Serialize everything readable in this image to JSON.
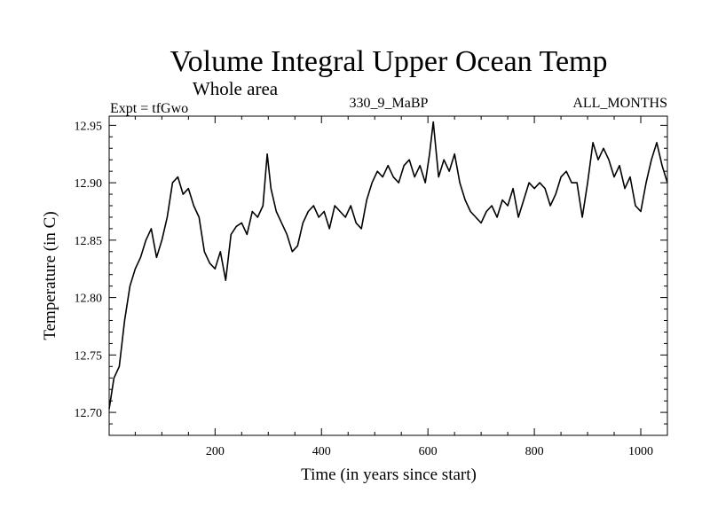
{
  "chart_data": {
    "type": "line",
    "title": "Volume Integral Upper Ocean Temp",
    "subtitle": "Whole area",
    "header_left": "Expt = tfGwo",
    "header_center": "330_9_MaBP",
    "header_right": "ALL_MONTHS",
    "xlabel": "Time (in years since start)",
    "ylabel": "Temperature (in C)",
    "xlim": [
      1,
      1050
    ],
    "ylim": [
      12.68,
      12.958
    ],
    "xticks": [
      200,
      400,
      600,
      800,
      1000
    ],
    "xtick_labels": [
      "200",
      "400",
      "600",
      "800",
      "1000"
    ],
    "yticks": [
      12.7,
      12.75,
      12.8,
      12.85,
      12.9,
      12.95
    ],
    "ytick_labels": [
      "12.70",
      "12.75",
      "12.80",
      "12.85",
      "12.90",
      "12.95"
    ],
    "grid": false,
    "series": [
      {
        "name": "Temperature",
        "color": "#000000",
        "x": [
          1,
          10,
          20,
          30,
          40,
          50,
          60,
          70,
          80,
          90,
          100,
          110,
          120,
          130,
          140,
          150,
          160,
          170,
          180,
          190,
          200,
          210,
          220,
          230,
          240,
          250,
          260,
          270,
          280,
          290,
          298,
          305,
          315,
          325,
          335,
          345,
          355,
          365,
          375,
          385,
          395,
          405,
          415,
          425,
          435,
          445,
          455,
          465,
          475,
          485,
          495,
          505,
          515,
          525,
          535,
          545,
          555,
          565,
          575,
          585,
          595,
          603,
          610,
          620,
          630,
          640,
          650,
          660,
          670,
          680,
          690,
          700,
          710,
          720,
          730,
          740,
          750,
          760,
          770,
          780,
          790,
          800,
          810,
          820,
          830,
          840,
          850,
          860,
          870,
          880,
          890,
          900,
          910,
          920,
          930,
          940,
          950,
          960,
          970,
          980,
          990,
          1000,
          1010,
          1020,
          1030,
          1040,
          1050
        ],
        "values": [
          12.703,
          12.73,
          12.74,
          12.78,
          12.81,
          12.825,
          12.835,
          12.85,
          12.86,
          12.835,
          12.85,
          12.87,
          12.9,
          12.905,
          12.89,
          12.895,
          12.88,
          12.87,
          12.84,
          12.83,
          12.825,
          12.84,
          12.815,
          12.855,
          12.862,
          12.865,
          12.855,
          12.875,
          12.87,
          12.88,
          12.925,
          12.895,
          12.875,
          12.865,
          12.855,
          12.84,
          12.845,
          12.865,
          12.875,
          12.88,
          12.87,
          12.875,
          12.86,
          12.88,
          12.875,
          12.87,
          12.88,
          12.865,
          12.86,
          12.885,
          12.9,
          12.91,
          12.905,
          12.915,
          12.905,
          12.9,
          12.915,
          12.92,
          12.905,
          12.915,
          12.9,
          12.925,
          12.953,
          12.905,
          12.92,
          12.91,
          12.925,
          12.9,
          12.885,
          12.875,
          12.87,
          12.865,
          12.875,
          12.88,
          12.87,
          12.885,
          12.88,
          12.895,
          12.87,
          12.885,
          12.9,
          12.895,
          12.9,
          12.895,
          12.88,
          12.89,
          12.905,
          12.91,
          12.9,
          12.9,
          12.87,
          12.9,
          12.935,
          12.92,
          12.93,
          12.92,
          12.905,
          12.915,
          12.895,
          12.905,
          12.88,
          12.875,
          12.9,
          12.92,
          12.935,
          12.915,
          12.9
        ]
      }
    ]
  }
}
